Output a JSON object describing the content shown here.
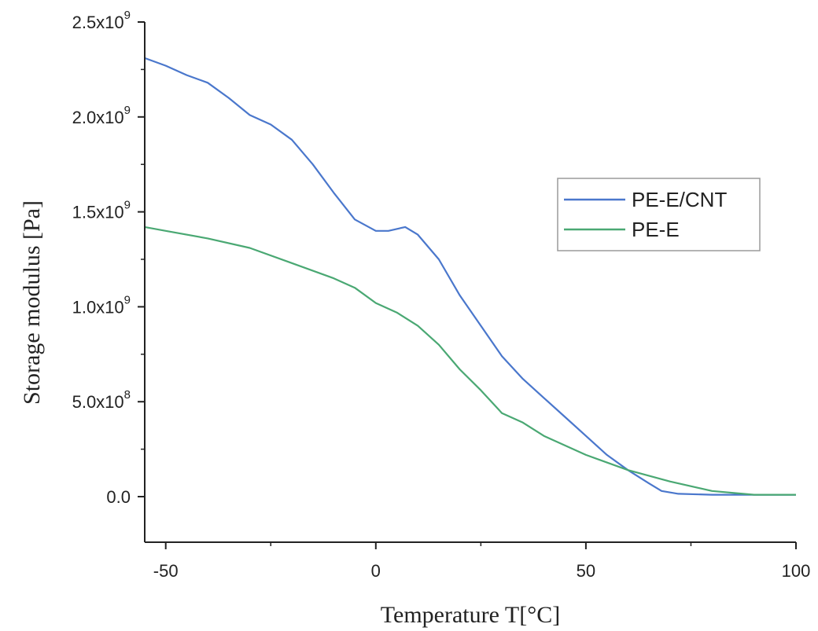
{
  "chart_data": {
    "type": "line",
    "title": "",
    "xlabel": "Temperature T[°C]",
    "ylabel": "Storage modulus [Pa]",
    "xlim": [
      -55,
      100
    ],
    "ylim": [
      -240000000,
      2500000000
    ],
    "grid": false,
    "legend_position": "center-right",
    "x_ticks": [
      -50,
      0,
      50,
      100
    ],
    "x_tick_labels": [
      "-50",
      "0",
      "50",
      "100"
    ],
    "y_ticks": [
      0,
      500000000,
      1000000000,
      1500000000,
      2000000000,
      2500000000
    ],
    "y_tick_labels": [
      {
        "base": "0.0",
        "exp": ""
      },
      {
        "base": "5.0x10",
        "exp": "8"
      },
      {
        "base": "1.0x10",
        "exp": "9"
      },
      {
        "base": "1.5x10",
        "exp": "9"
      },
      {
        "base": "2.0x10",
        "exp": "9"
      },
      {
        "base": "2.5x10",
        "exp": "9"
      }
    ],
    "series": [
      {
        "name": "PE-E/CNT",
        "color": "#4a77cc",
        "points": [
          [
            -55,
            2310000000
          ],
          [
            -50,
            2270000000
          ],
          [
            -45,
            2220000000
          ],
          [
            -40,
            2180000000
          ],
          [
            -35,
            2100000000
          ],
          [
            -30,
            2010000000
          ],
          [
            -25,
            1960000000
          ],
          [
            -20,
            1880000000
          ],
          [
            -15,
            1750000000
          ],
          [
            -10,
            1600000000
          ],
          [
            -5,
            1460000000
          ],
          [
            0,
            1400000000
          ],
          [
            3,
            1400000000
          ],
          [
            7,
            1420000000
          ],
          [
            10,
            1380000000
          ],
          [
            15,
            1250000000
          ],
          [
            20,
            1060000000
          ],
          [
            25,
            900000000
          ],
          [
            30,
            740000000
          ],
          [
            35,
            620000000
          ],
          [
            40,
            520000000
          ],
          [
            45,
            420000000
          ],
          [
            50,
            320000000
          ],
          [
            55,
            220000000
          ],
          [
            60,
            140000000
          ],
          [
            65,
            70000000
          ],
          [
            68,
            30000000
          ],
          [
            72,
            15000000
          ],
          [
            80,
            10000000
          ],
          [
            90,
            10000000
          ],
          [
            100,
            10000000
          ]
        ]
      },
      {
        "name": "PE-E",
        "color": "#4aa873",
        "points": [
          [
            -55,
            1420000000
          ],
          [
            -50,
            1400000000
          ],
          [
            -40,
            1360000000
          ],
          [
            -30,
            1310000000
          ],
          [
            -20,
            1230000000
          ],
          [
            -10,
            1150000000
          ],
          [
            -5,
            1100000000
          ],
          [
            0,
            1020000000
          ],
          [
            5,
            970000000
          ],
          [
            10,
            900000000
          ],
          [
            15,
            800000000
          ],
          [
            20,
            670000000
          ],
          [
            25,
            560000000
          ],
          [
            30,
            440000000
          ],
          [
            35,
            390000000
          ],
          [
            40,
            320000000
          ],
          [
            50,
            220000000
          ],
          [
            60,
            140000000
          ],
          [
            70,
            80000000
          ],
          [
            80,
            30000000
          ],
          [
            90,
            10000000
          ],
          [
            100,
            10000000
          ]
        ]
      }
    ]
  }
}
